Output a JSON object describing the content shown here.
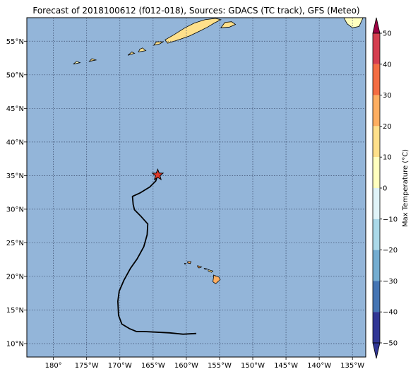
{
  "title": "Forecast of 2018100612 (f012-018), Sources: GDACS (TC track), GFS (Meteo)",
  "colors": {
    "ocean": "#93b5d9",
    "frame": "#000000",
    "grid": "#3a4a6a",
    "track": "#000000",
    "storm_marker": "#e03a2a"
  },
  "map": {
    "lon_range": [
      -184,
      -133
    ],
    "lat_range": [
      8,
      58.5
    ],
    "lon_ticks": [
      {
        "value": -180,
        "label": "180°"
      },
      {
        "value": -175,
        "label": "175°W"
      },
      {
        "value": -170,
        "label": "170°W"
      },
      {
        "value": -165,
        "label": "165°W"
      },
      {
        "value": -160,
        "label": "160°W"
      },
      {
        "value": -155,
        "label": "155°W"
      },
      {
        "value": -150,
        "label": "150°W"
      },
      {
        "value": -145,
        "label": "145°W"
      },
      {
        "value": -140,
        "label": "140°W"
      },
      {
        "value": -135,
        "label": "135°W"
      }
    ],
    "lat_ticks": [
      {
        "value": 55,
        "label": "55°N"
      },
      {
        "value": 50,
        "label": "50°N"
      },
      {
        "value": 45,
        "label": "45°N"
      },
      {
        "value": 40,
        "label": "40°N"
      },
      {
        "value": 35,
        "label": "35°N"
      },
      {
        "value": 30,
        "label": "30°N"
      },
      {
        "value": 25,
        "label": "25°N"
      },
      {
        "value": 20,
        "label": "20°N"
      },
      {
        "value": 15,
        "label": "15°N"
      },
      {
        "value": 10,
        "label": "10°N"
      }
    ],
    "track": [
      [
        -158.5,
        11.5
      ],
      [
        -160.5,
        11.4
      ],
      [
        -162.5,
        11.6
      ],
      [
        -164.5,
        11.7
      ],
      [
        -166.5,
        11.8
      ],
      [
        -167.5,
        11.8
      ],
      [
        -168.5,
        12.2
      ],
      [
        -169.7,
        12.9
      ],
      [
        -170.2,
        14.2
      ],
      [
        -170.3,
        16.3
      ],
      [
        -170.1,
        17.8
      ],
      [
        -169.4,
        19.4
      ],
      [
        -168.4,
        21.2
      ],
      [
        -167.4,
        22.6
      ],
      [
        -166.4,
        24.4
      ],
      [
        -165.9,
        26.2
      ],
      [
        -165.8,
        27.8
      ],
      [
        -166.8,
        28.9
      ],
      [
        -167.8,
        29.9
      ],
      [
        -168.0,
        30.7
      ],
      [
        -168.1,
        31.9
      ],
      [
        -167.0,
        32.4
      ],
      [
        -165.5,
        33.3
      ],
      [
        -164.6,
        34.2
      ],
      [
        -164.3,
        35.1
      ]
    ],
    "storm_position": [
      -164.3,
      35.1
    ],
    "land_polygons": [
      {
        "name": "Hawaii",
        "temp": 30,
        "pts": [
          [
            -155.9,
            20.2
          ],
          [
            -155.1,
            19.9
          ],
          [
            -154.9,
            19.5
          ],
          [
            -155.6,
            18.9
          ],
          [
            -156.0,
            19.2
          ],
          [
            -155.9,
            19.9
          ]
        ]
      },
      {
        "name": "Maui",
        "temp": 20,
        "pts": [
          [
            -156.7,
            21.0
          ],
          [
            -156.0,
            20.8
          ],
          [
            -156.2,
            20.6
          ],
          [
            -156.7,
            20.8
          ]
        ]
      },
      {
        "name": "Molokai",
        "temp": 20,
        "pts": [
          [
            -157.3,
            21.2
          ],
          [
            -156.8,
            21.1
          ],
          [
            -157.2,
            21.05
          ]
        ]
      },
      {
        "name": "Oahu",
        "temp": 30,
        "pts": [
          [
            -158.3,
            21.6
          ],
          [
            -157.7,
            21.4
          ],
          [
            -158.1,
            21.25
          ],
          [
            -158.3,
            21.4
          ]
        ]
      },
      {
        "name": "Kauai",
        "temp": 30,
        "pts": [
          [
            -159.8,
            22.2
          ],
          [
            -159.3,
            22.2
          ],
          [
            -159.4,
            21.9
          ],
          [
            -159.8,
            22.0
          ]
        ]
      },
      {
        "name": "Niihau",
        "temp": 20,
        "pts": [
          [
            -160.25,
            21.95
          ],
          [
            -160.05,
            21.9
          ],
          [
            -160.2,
            21.8
          ]
        ]
      },
      {
        "name": "Alaska Peninsula",
        "temp": 20,
        "pts": [
          [
            -162.8,
            54.7
          ],
          [
            -161.2,
            55.2
          ],
          [
            -159.5,
            55.8
          ],
          [
            -158.0,
            56.5
          ],
          [
            -156.8,
            57.1
          ],
          [
            -155.8,
            57.7
          ],
          [
            -154.8,
            58.2
          ],
          [
            -155.6,
            58.4
          ],
          [
            -157.2,
            58.2
          ],
          [
            -158.8,
            57.7
          ],
          [
            -160.2,
            57.0
          ],
          [
            -161.8,
            56.0
          ],
          [
            -163.2,
            55.2
          ]
        ]
      },
      {
        "name": "Kodiak",
        "temp": 20,
        "pts": [
          [
            -154.8,
            57.0
          ],
          [
            -153.5,
            57.1
          ],
          [
            -152.6,
            57.5
          ],
          [
            -153.2,
            57.9
          ],
          [
            -154.2,
            57.8
          ]
        ]
      },
      {
        "name": "Unimak",
        "temp": 20,
        "pts": [
          [
            -164.9,
            54.4
          ],
          [
            -164.0,
            54.6
          ],
          [
            -163.5,
            54.9
          ],
          [
            -164.5,
            54.9
          ]
        ]
      },
      {
        "name": "Unalaska",
        "temp": 20,
        "pts": [
          [
            -167.2,
            53.4
          ],
          [
            -166.1,
            53.6
          ],
          [
            -166.6,
            54.0
          ],
          [
            -167.0,
            53.8
          ]
        ]
      },
      {
        "name": "Umnak",
        "temp": 20,
        "pts": [
          [
            -168.8,
            52.9
          ],
          [
            -167.8,
            53.2
          ],
          [
            -168.2,
            53.4
          ]
        ]
      },
      {
        "name": "Atka",
        "temp": 20,
        "pts": [
          [
            -174.6,
            52.0
          ],
          [
            -173.6,
            52.2
          ],
          [
            -174.2,
            52.4
          ]
        ]
      },
      {
        "name": "Adak",
        "temp": 10,
        "pts": [
          [
            -177.0,
            51.6
          ],
          [
            -176.0,
            51.8
          ],
          [
            -176.5,
            52.0
          ]
        ]
      },
      {
        "name": "Alaska mainland",
        "temp": 10,
        "pts": [
          [
            -136.3,
            58.5
          ],
          [
            -134.2,
            58.5
          ],
          [
            -133.4,
            58.5
          ],
          [
            -134.0,
            57.2
          ],
          [
            -135.0,
            57.0
          ],
          [
            -135.8,
            57.6
          ]
        ]
      }
    ]
  },
  "colorbar": {
    "label": "Max Temperature (°C)",
    "ticks": [
      50,
      40,
      30,
      20,
      10,
      0,
      -10,
      -20,
      -30,
      -40,
      -50
    ],
    "tick_labels": [
      "50",
      "40",
      "30",
      "20",
      "10",
      "0",
      "−10",
      "−20",
      "−30",
      "−40",
      "−50"
    ],
    "colors": [
      "#9e0142",
      "#d53e4f",
      "#f46d43",
      "#fdae61",
      "#fee08b",
      "#ffffbf",
      "#e0f3f8",
      "#abd9e9",
      "#74add1",
      "#4575b4",
      "#313695"
    ],
    "bounds_high_to_low": [
      50,
      40,
      30,
      20,
      10,
      0,
      -10,
      -20,
      -30,
      -40,
      -50
    ]
  }
}
